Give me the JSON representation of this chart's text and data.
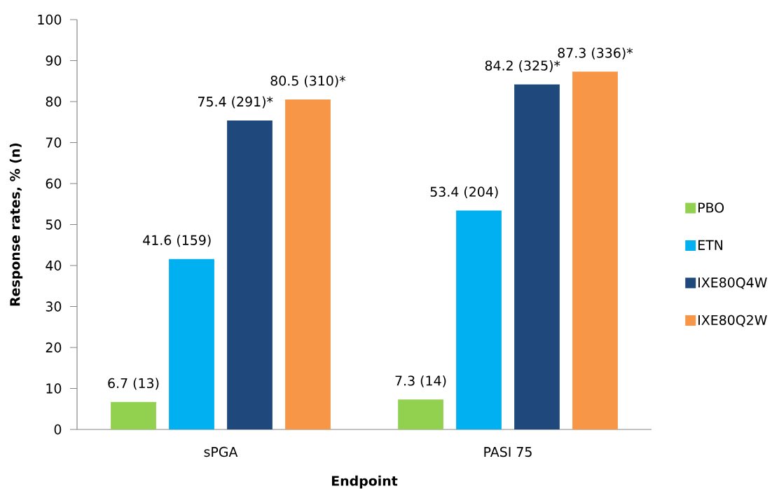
{
  "chart_data": {
    "type": "bar",
    "xlabel": "Endpoint",
    "ylabel": "Response rates, % (n)",
    "categories": [
      "sPGA",
      "PASI 75"
    ],
    "series": [
      {
        "name": "PBO",
        "color": "#92d050",
        "values": [
          6.7,
          7.3
        ],
        "value_labels": [
          "6.7 (13)",
          "7.3 (14)"
        ]
      },
      {
        "name": "ETN",
        "color": "#00b0f0",
        "values": [
          41.6,
          53.4
        ],
        "value_labels": [
          "41.6 (159)",
          "53.4 (204)"
        ]
      },
      {
        "name": "IXE80Q4W",
        "color": "#1f497d",
        "values": [
          75.4,
          84.2
        ],
        "value_labels": [
          "75.4 (291)*",
          "84.2 (325)*"
        ]
      },
      {
        "name": "IXE80Q2W",
        "color": "#f79646",
        "values": [
          80.5,
          87.3
        ],
        "value_labels": [
          "80.5 (310)*",
          "87.3 (336)*"
        ]
      }
    ],
    "ylim": [
      0,
      100
    ],
    "yticks": [
      0,
      10,
      20,
      30,
      40,
      50,
      60,
      70,
      80,
      90,
      100
    ],
    "legend": "right"
  }
}
